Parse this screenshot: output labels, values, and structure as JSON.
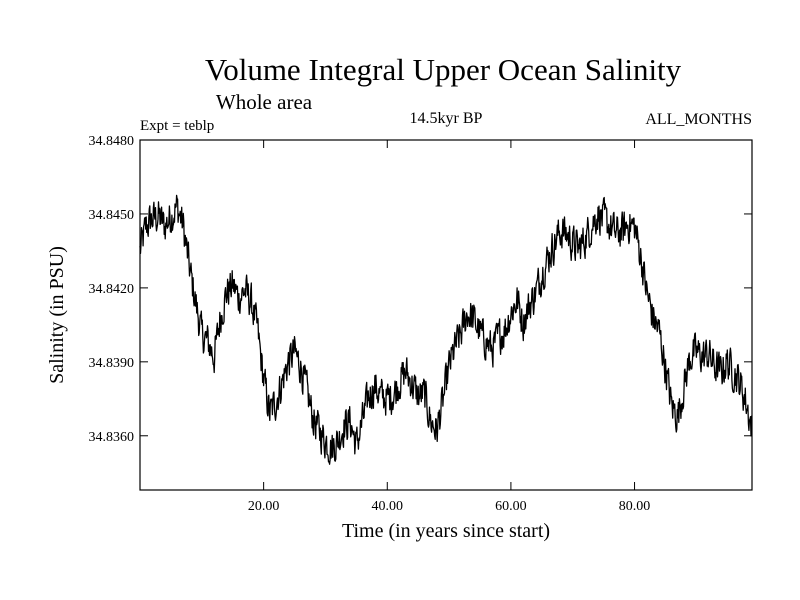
{
  "chart_data": {
    "type": "line",
    "title": "Volume Integral Upper Ocean Salinity",
    "subtitle": "Whole area",
    "experiment_label": "Expt = teblp",
    "period_label": "14.5kyr BP",
    "months_label": "ALL_MONTHS",
    "xlabel": "Time (in years since start)",
    "ylabel": "Salinity (in PSU)",
    "xlim": [
      0.0,
      99.0
    ],
    "ylim": [
      34.8338,
      34.848
    ],
    "xticks": [
      20,
      40,
      60,
      80
    ],
    "xtick_labels": [
      "20.00",
      "40.00",
      "60.00",
      "80.00"
    ],
    "yticks": [
      34.836,
      34.839,
      34.842,
      34.845,
      34.848
    ],
    "ytick_labels": [
      "34.8360",
      "34.8390",
      "34.8420",
      "34.8450",
      "34.8480"
    ],
    "grid": false,
    "series": [
      {
        "name": "Volume integral upper ocean salinity",
        "trend_x": [
          0.0,
          1.0,
          2.0,
          3.0,
          4.0,
          5.0,
          6.0,
          7.0,
          8.0,
          9.0,
          10.0,
          11.0,
          12.0,
          13.0,
          14.0,
          15.0,
          16.0,
          17.0,
          18.0,
          19.0,
          20.0,
          21.0,
          22.0,
          23.0,
          24.0,
          25.0,
          26.0,
          27.0,
          28.0,
          29.0,
          30.0,
          31.0,
          32.0,
          33.0,
          34.0,
          35.0,
          36.0,
          37.0,
          38.0,
          39.0,
          40.0,
          41.0,
          42.0,
          43.0,
          44.0,
          45.0,
          46.0,
          47.0,
          48.0,
          49.0,
          50.0,
          51.0,
          52.0,
          53.0,
          54.0,
          55.0,
          56.0,
          57.0,
          58.0,
          59.0,
          60.0,
          61.0,
          62.0,
          63.0,
          64.0,
          65.0,
          66.0,
          67.0,
          68.0,
          69.0,
          70.0,
          71.0,
          72.0,
          73.0,
          74.0,
          75.0,
          76.0,
          77.0,
          78.0,
          79.0,
          80.0,
          81.0,
          82.0,
          83.0,
          84.0,
          85.0,
          86.0,
          87.0,
          88.0,
          89.0,
          90.0,
          91.0,
          92.0,
          93.0,
          94.0,
          95.0,
          96.0,
          97.0,
          98.0,
          99.0
        ],
        "trend_y": [
          34.8435,
          34.8445,
          34.8448,
          34.8449,
          34.8445,
          34.8449,
          34.8453,
          34.8445,
          34.8428,
          34.8414,
          34.8401,
          34.8398,
          34.8392,
          34.8408,
          34.8418,
          34.8421,
          34.8416,
          34.8419,
          34.8414,
          34.8403,
          34.8383,
          34.8369,
          34.8374,
          34.8382,
          34.839,
          34.8394,
          34.8388,
          34.8378,
          34.8367,
          34.8362,
          34.8358,
          34.8355,
          34.8358,
          34.8364,
          34.8366,
          34.8356,
          34.8366,
          34.8376,
          34.838,
          34.8376,
          34.8375,
          34.8377,
          34.8382,
          34.8386,
          34.8381,
          34.8376,
          34.8377,
          34.8366,
          34.8362,
          34.8374,
          34.8388,
          34.8396,
          34.8402,
          34.841,
          34.8407,
          34.8402,
          34.8398,
          34.8395,
          34.84,
          34.8403,
          34.841,
          34.8415,
          34.8406,
          34.8413,
          34.8418,
          34.8426,
          34.8432,
          34.8438,
          34.8443,
          34.8442,
          34.8438,
          34.8436,
          34.844,
          34.8445,
          34.845,
          34.8448,
          34.8445,
          34.8442,
          34.8443,
          34.8446,
          34.8445,
          34.8433,
          34.8418,
          34.8408,
          34.8402,
          34.8388,
          34.8372,
          34.8368,
          34.838,
          34.8392,
          34.8394,
          34.8392,
          34.8393,
          34.8388,
          34.8386,
          34.839,
          34.8386,
          34.8382,
          34.8374,
          34.8363
        ],
        "noise_amplitude": 0.0012,
        "samples_per_year": 12
      }
    ]
  }
}
